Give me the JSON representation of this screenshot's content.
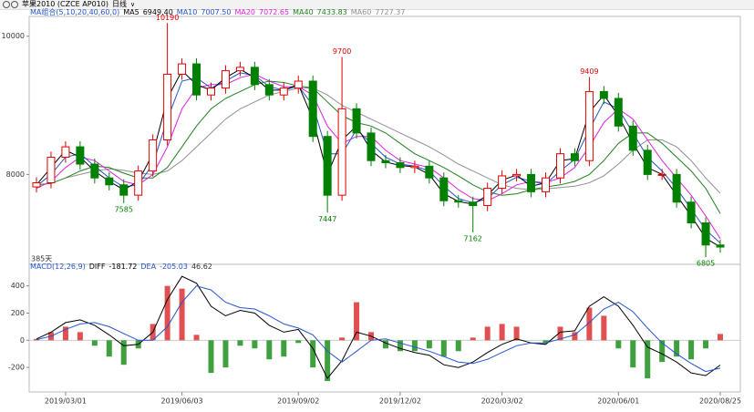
{
  "header": {
    "title": "苹果2010 (CZCE AP010)",
    "period": "日线"
  },
  "chart_data": [
    {
      "type": "candlestick",
      "indicator_label": "MA组合(5,10,20,40,60,0)",
      "open": [
        7820,
        7880,
        8250,
        8400,
        8150,
        7950,
        7850,
        7700,
        8050,
        8500,
        9450,
        9600,
        9150,
        9250,
        9500,
        9550,
        9300,
        9150,
        9250,
        9350,
        8550,
        7700,
        8950,
        8600,
        8200,
        8170,
        8100,
        8120,
        7950,
        7620,
        7600,
        7550,
        7800,
        7980,
        8000,
        7750,
        7950,
        8300,
        8200,
        9200,
        9100,
        8700,
        8350,
        8000,
        8000,
        7600,
        7300,
        6980
      ],
      "high": [
        7960,
        8330,
        8480,
        8480,
        8230,
        8030,
        7930,
        8130,
        8580,
        10190,
        9680,
        9680,
        9330,
        9580,
        9630,
        9630,
        9380,
        9330,
        9430,
        9430,
        8630,
        9700,
        9030,
        8680,
        8280,
        8250,
        8200,
        8200,
        8030,
        7700,
        7680,
        7880,
        8060,
        8080,
        8080,
        8030,
        8380,
        8380,
        9409,
        9280,
        9180,
        8780,
        8430,
        8080,
        8080,
        7680,
        7380,
        7060
      ],
      "low": [
        7740,
        7800,
        8170,
        8070,
        7870,
        7770,
        7585,
        7620,
        7970,
        8420,
        9370,
        9070,
        9070,
        9170,
        9420,
        9220,
        9070,
        9070,
        9170,
        8470,
        7447,
        7620,
        8520,
        8120,
        8090,
        8020,
        8020,
        7870,
        7540,
        7520,
        7162,
        7470,
        7720,
        7900,
        7670,
        7670,
        7870,
        8120,
        8120,
        9020,
        8620,
        8270,
        7920,
        7920,
        7520,
        7220,
        6805,
        6870
      ],
      "close": [
        7880,
        8250,
        8400,
        8150,
        7950,
        7850,
        7700,
        8050,
        8500,
        9450,
        9600,
        9150,
        9250,
        9500,
        9550,
        9300,
        9150,
        9250,
        9350,
        8550,
        7700,
        8950,
        8600,
        8200,
        8170,
        8100,
        8120,
        7950,
        7620,
        7600,
        7550,
        7800,
        7980,
        8000,
        7750,
        7950,
        8300,
        8200,
        9200,
        9100,
        8700,
        8350,
        8000,
        8000,
        7600,
        7300,
        6980,
        6950
      ],
      "up_color": "#e00000",
      "down_color": "#008000",
      "series": [
        {
          "name": "MA5",
          "color": "#000000",
          "current": {
            "value": 6949.4,
            "label": "6949.40"
          },
          "values": [
            7850,
            8100,
            8350,
            8250,
            8050,
            7900,
            7780,
            7900,
            8300,
            9100,
            9500,
            9300,
            9220,
            9400,
            9520,
            9400,
            9220,
            9220,
            9300,
            8800,
            8000,
            8500,
            8700,
            8350,
            8180,
            8130,
            8110,
            8000,
            7720,
            7610,
            7570,
            7700,
            7920,
            7990,
            7830,
            7880,
            8200,
            8230,
            8900,
            9150,
            8850,
            8450,
            8100,
            8000,
            7700,
            7400,
            7080,
            6949
          ]
        },
        {
          "name": "MA10",
          "color": "#2255cc",
          "current": {
            "value": 7007.5,
            "label": "7007.50"
          },
          "values": [
            7830,
            8000,
            8250,
            8300,
            8120,
            7950,
            7820,
            7850,
            8150,
            8800,
            9350,
            9400,
            9250,
            9350,
            9470,
            9430,
            9270,
            9220,
            9280,
            9000,
            8300,
            8300,
            8650,
            8450,
            8250,
            8150,
            8120,
            8050,
            7830,
            7650,
            7590,
            7650,
            7850,
            7960,
            7900,
            7860,
            8050,
            8220,
            8650,
            9050,
            8950,
            8600,
            8250,
            8050,
            7800,
            7500,
            7200,
            7008
          ]
        },
        {
          "name": "MA20",
          "color": "#e020e0",
          "current": {
            "value": 7072.65,
            "label": "7072.65"
          },
          "values": [
            7800,
            7900,
            8100,
            8250,
            8200,
            8050,
            7900,
            7850,
            8000,
            8400,
            8950,
            9250,
            9300,
            9300,
            9400,
            9450,
            9350,
            9270,
            9270,
            9150,
            8700,
            8450,
            8550,
            8550,
            8350,
            8200,
            8150,
            8100,
            7950,
            7780,
            7650,
            7620,
            7720,
            7850,
            7900,
            7880,
            7950,
            8100,
            8400,
            8750,
            8950,
            8800,
            8500,
            8200,
            7950,
            7700,
            7400,
            7073
          ]
        },
        {
          "name": "MA40",
          "color": "#208020",
          "current": {
            "value": 7433.83,
            "label": "7433.83"
          },
          "values": [
            7850,
            7870,
            7950,
            8050,
            8120,
            8100,
            8020,
            7950,
            7950,
            8100,
            8400,
            8700,
            8950,
            9100,
            9200,
            9300,
            9350,
            9330,
            9280,
            9250,
            9050,
            8850,
            8750,
            8700,
            8600,
            8450,
            8300,
            8200,
            8100,
            7980,
            7850,
            7750,
            7700,
            7720,
            7780,
            7820,
            7850,
            7900,
            8000,
            8200,
            8450,
            8600,
            8600,
            8450,
            8250,
            8050,
            7800,
            7434
          ]
        },
        {
          "name": "MA60",
          "color": "#909090",
          "current": {
            "value": 7727.37,
            "label": "7727.37"
          },
          "values": [
            null,
            null,
            7950,
            8000,
            8050,
            8080,
            8060,
            8020,
            8000,
            8050,
            8200,
            8400,
            8600,
            8800,
            8950,
            9050,
            9150,
            9200,
            9250,
            9250,
            9150,
            9000,
            8900,
            8800,
            8700,
            8600,
            8500,
            8400,
            8280,
            8150,
            8050,
            7950,
            7850,
            7800,
            7780,
            7790,
            7810,
            7830,
            7880,
            7980,
            8150,
            8350,
            8500,
            8500,
            8400,
            8200,
            7950,
            7727
          ]
        }
      ],
      "annotations": [
        {
          "index": 9,
          "position": "above"
        },
        {
          "index": 6,
          "position": "below"
        },
        {
          "index": 21,
          "position": "above"
        },
        {
          "index": 20,
          "position": "below"
        },
        {
          "index": 30,
          "position": "below"
        },
        {
          "index": 38,
          "position": "above"
        },
        {
          "index": 46,
          "position": "below"
        }
      ],
      "ylim": [
        6700,
        10260
      ],
      "yticks": [
        8000,
        10000
      ],
      "xticks": [
        {
          "value": 2,
          "label": "2019/03/01"
        },
        {
          "value": 10,
          "label": "2019/06/03"
        },
        {
          "value": 18,
          "label": "2019/09/02"
        },
        {
          "value": 25,
          "label": "2019/12/02"
        },
        {
          "value": 32,
          "label": "2020/03/02"
        },
        {
          "value": 40,
          "label": "2020/06/01"
        },
        {
          "value": 47,
          "label": "2020/08/25"
        }
      ],
      "footnote": "385天"
    },
    {
      "type": "macd",
      "indicator_label": "MACD(12,26,9)",
      "series": [
        {
          "name": "DIFF",
          "color": "#000000",
          "current": -181.72,
          "values": [
            10,
            60,
            130,
            150,
            110,
            40,
            -40,
            -30,
            60,
            300,
            470,
            420,
            250,
            180,
            220,
            200,
            110,
            60,
            80,
            -60,
            -280,
            -150,
            60,
            30,
            -20,
            -60,
            -90,
            -110,
            -180,
            -200,
            -160,
            -90,
            -30,
            10,
            -20,
            -30,
            60,
            70,
            250,
            320,
            250,
            110,
            -50,
            -100,
            -160,
            -240,
            -260,
            -182
          ]
        },
        {
          "name": "DEA",
          "color": "#2255cc",
          "current": -205.03,
          "values": [
            5,
            30,
            80,
            120,
            130,
            100,
            50,
            0,
            0,
            100,
            280,
            400,
            370,
            280,
            240,
            230,
            180,
            120,
            90,
            40,
            -80,
            -160,
            -80,
            0,
            10,
            -20,
            -50,
            -80,
            -120,
            -160,
            -170,
            -140,
            -90,
            -40,
            -20,
            -20,
            10,
            40,
            130,
            230,
            280,
            210,
            90,
            -20,
            -100,
            -170,
            -230,
            -205
          ]
        }
      ],
      "histogram": {
        "current": 46.62,
        "up_color": "#e05050",
        "down_color": "#40a040",
        "values": [
          10,
          60,
          100,
          60,
          -40,
          -120,
          -180,
          -60,
          120,
          400,
          380,
          40,
          -240,
          -200,
          -40,
          -60,
          -140,
          -120,
          -20,
          -200,
          -300,
          20,
          280,
          60,
          -60,
          -80,
          -80,
          -60,
          -120,
          -80,
          20,
          100,
          120,
          100,
          0,
          -20,
          100,
          60,
          240,
          180,
          -60,
          -200,
          -280,
          -160,
          -120,
          -140,
          -60,
          46.62
        ]
      },
      "ylim": [
        -380,
        505
      ],
      "yticks": [
        -200,
        0,
        200,
        400
      ]
    }
  ]
}
